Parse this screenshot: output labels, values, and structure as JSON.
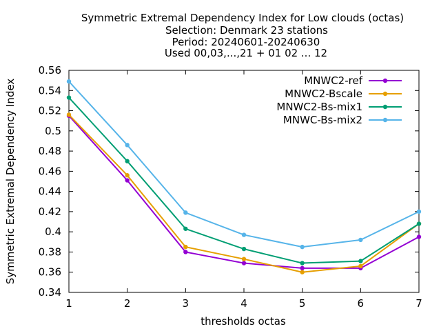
{
  "chart_data": {
    "type": "line",
    "title_lines": [
      "Symmetric Extremal Dependency Index  for Low clouds (octas)",
      "Selection: Denmark      23 stations",
      "Period: 20240601-20240630",
      "Used 00,03,...,21 + 01 02 ... 12"
    ],
    "xlabel": "thresholds octas",
    "ylabel": "Symmetric Extremal Dependency Index",
    "x": [
      1,
      2,
      3,
      4,
      5,
      6,
      7
    ],
    "x_tick_labels": [
      "1",
      "2",
      "3",
      "4",
      "5",
      "6",
      "7"
    ],
    "xlim": [
      1,
      7
    ],
    "ylim": [
      0.34,
      0.56
    ],
    "y_ticks": [
      0.34,
      0.36,
      0.38,
      0.4,
      0.42,
      0.44,
      0.46,
      0.48,
      0.5,
      0.52,
      0.54,
      0.56
    ],
    "y_tick_labels": [
      "0.34",
      "0.36",
      "0.38",
      "0.4",
      "0.42",
      "0.44",
      "0.46",
      "0.48",
      "0.5",
      "0.52",
      "0.54",
      "0.56"
    ],
    "grid": false,
    "legend_position": "top-right",
    "series": [
      {
        "name": "MNWC2-ref",
        "color": "#9400d3",
        "values": [
          0.515,
          0.451,
          0.38,
          0.369,
          0.364,
          0.364,
          0.395
        ]
      },
      {
        "name": "MNWC2-Bscale",
        "color": "#e69f00",
        "values": [
          0.516,
          0.456,
          0.385,
          0.373,
          0.36,
          0.366,
          0.408
        ]
      },
      {
        "name": "MNWC2-Bs-mix1",
        "color": "#009e73",
        "values": [
          0.533,
          0.47,
          0.403,
          0.383,
          0.369,
          0.371,
          0.408
        ]
      },
      {
        "name": "MNWC-Bs-mix2",
        "color": "#56b4e9",
        "values": [
          0.549,
          0.486,
          0.419,
          0.397,
          0.385,
          0.392,
          0.42
        ]
      }
    ]
  }
}
